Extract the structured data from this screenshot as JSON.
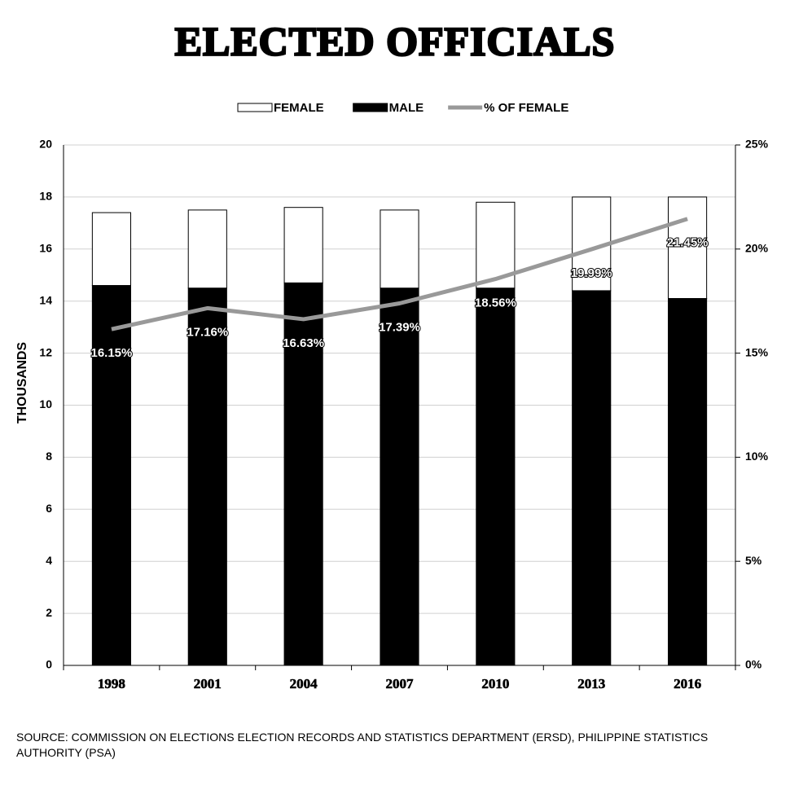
{
  "chart_data": {
    "type": "bar",
    "stacked": true,
    "title": "ELECTED OFFICIALS",
    "y_label": "THOUSANDS",
    "categories": [
      "1998",
      "2001",
      "2004",
      "2007",
      "2010",
      "2013",
      "2016"
    ],
    "series": [
      {
        "name": "FEMALE",
        "color": "#ffffff",
        "values": [
          2.8,
          3.0,
          2.9,
          3.0,
          3.3,
          3.6,
          3.9
        ]
      },
      {
        "name": "MALE",
        "color": "#000000",
        "values": [
          14.6,
          14.5,
          14.7,
          14.5,
          14.5,
          14.4,
          14.1
        ]
      },
      {
        "name": "% OF FEMALE",
        "type": "line",
        "axis": "y2",
        "color": "#999999",
        "values": [
          16.15,
          17.16,
          16.63,
          17.39,
          18.56,
          19.99,
          21.45
        ],
        "value_labels": [
          "16.15%",
          "17.16%",
          "16.63%",
          "17.39%",
          "18.56%",
          "19.99%",
          "21.45%"
        ]
      }
    ],
    "ylim": [
      0,
      20
    ],
    "yticks": [
      0,
      2,
      4,
      6,
      8,
      10,
      12,
      14,
      16,
      18,
      20
    ],
    "y2lim": [
      0,
      25
    ],
    "y2ticks": [
      {
        "value": 0,
        "label": "0%"
      },
      {
        "value": 5,
        "label": "5%"
      },
      {
        "value": 10,
        "label": "10%"
      },
      {
        "value": 15,
        "label": "15%"
      },
      {
        "value": 20,
        "label": "20%"
      },
      {
        "value": 25,
        "label": "25%"
      }
    ],
    "grid": true,
    "legend": "top",
    "source": "SOURCE: COMMISSION ON ELECTIONS ELECTION RECORDS AND STATISTICS DEPARTMENT (ERSD), PHILIPPINE STATISTICS AUTHORITY (PSA)"
  }
}
